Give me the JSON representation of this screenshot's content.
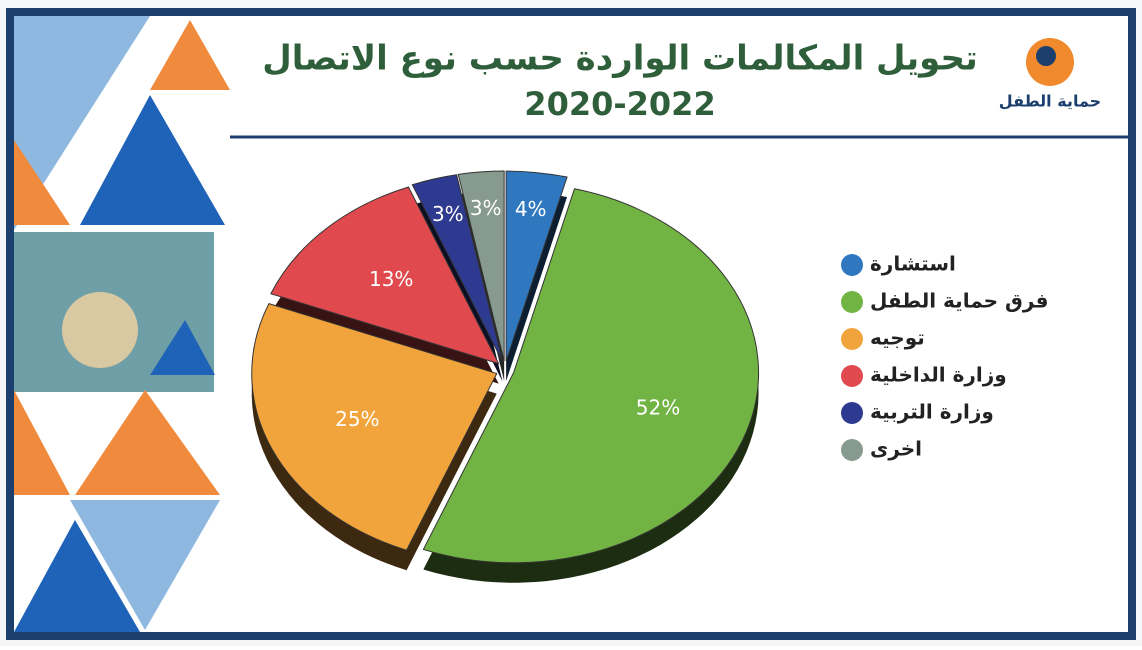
{
  "chart_data": {
    "type": "pie",
    "title": "تحويل المكالمات الواردة حسب نوع الاتصال",
    "subtitle": "2020-2022",
    "logo_text": "حماية الطفل",
    "categories": [
      "استشارة",
      "فرق حماية الطفل",
      "توجيه",
      "وزارة الداخلية",
      "وزارة التربية",
      "اخرى"
    ],
    "values": [
      4,
      52,
      25,
      13,
      3,
      3
    ],
    "value_labels": [
      "4%",
      "52%",
      "25%",
      "13%",
      "3%",
      "3%"
    ],
    "colors": [
      "#2f78c0",
      "#72b443",
      "#f2a43c",
      "#e04a4e",
      "#2e3a8f",
      "#879a8f"
    ],
    "legend": "right"
  }
}
